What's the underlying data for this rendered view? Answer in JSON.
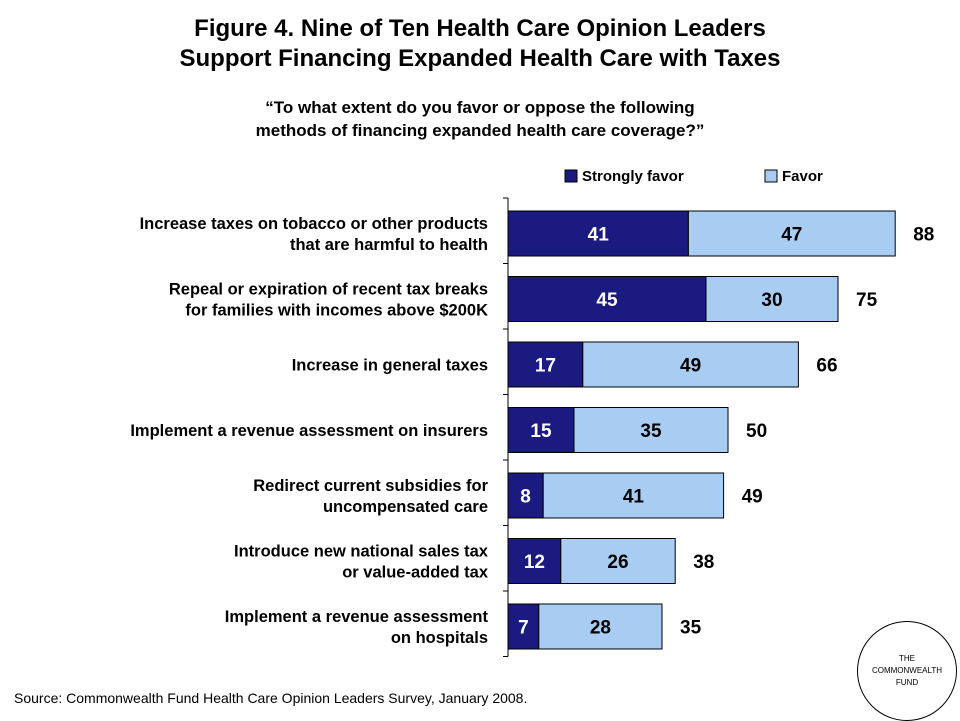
{
  "title_lines": [
    "Figure 4. Nine of Ten Health Care Opinion Leaders",
    "Support Financing Expanded Health Care with Taxes"
  ],
  "subtitle_lines": [
    "“To what extent do you favor or oppose the following",
    "methods of financing expanded health care coverage?”"
  ],
  "source": "Source: Commonwealth Fund Health Care Opinion Leaders Survey, January 2008.",
  "logo_lines": [
    "THE",
    "COMMONWEALTH",
    "FUND"
  ],
  "colors": {
    "strongly_favor": "#1a1a80",
    "favor": "#a9cdf2"
  },
  "chart_data": {
    "type": "bar",
    "orientation": "horizontal",
    "stacked": true,
    "categories": [
      [
        "Increase taxes on tobacco or other products",
        "that are harmful to health"
      ],
      [
        "Repeal or expiration of recent tax breaks",
        "for families with incomes above $200K"
      ],
      [
        "Increase in general taxes"
      ],
      [
        "Implement a revenue assessment on insurers"
      ],
      [
        "Redirect current subsidies for",
        "uncompensated care"
      ],
      [
        "Introduce new national sales tax",
        "or value-added tax"
      ],
      [
        "Implement a revenue assessment",
        "on hospitals"
      ]
    ],
    "series": [
      {
        "name": "Strongly favor",
        "values": [
          41,
          45,
          17,
          15,
          8,
          12,
          7
        ]
      },
      {
        "name": "Favor",
        "values": [
          47,
          30,
          49,
          35,
          41,
          26,
          28
        ]
      }
    ],
    "totals": [
      88,
      75,
      66,
      50,
      49,
      38,
      35
    ],
    "legend_position": "top-right",
    "grid": false
  }
}
